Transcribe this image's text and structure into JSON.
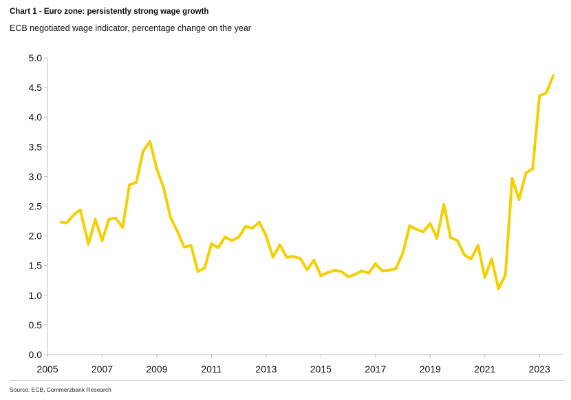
{
  "title": "Chart 1 - Euro zone: persistently strong wage growth",
  "subtitle": "ECB negotiated wage indicator, percentage change on the year",
  "source": "Source: ECB, Commerzbank Research",
  "chart_data": {
    "type": "line",
    "title": "Chart 1 - Euro zone: persistently strong wage growth",
    "subtitle": "ECB negotiated wage indicator, percentage change on the year",
    "xlabel": "",
    "ylabel": "",
    "xlim": [
      2005,
      2023.85
    ],
    "ylim": [
      0,
      5
    ],
    "y_ticks": [
      "0.0",
      "0.5",
      "1.0",
      "1.5",
      "2.0",
      "2.5",
      "3.0",
      "3.5",
      "4.0",
      "4.5",
      "5.0"
    ],
    "x_ticks": [
      "2005",
      "2007",
      "2009",
      "2011",
      "2013",
      "2015",
      "2017",
      "2019",
      "2021",
      "2023"
    ],
    "grid": false,
    "legend": "none",
    "line_color": "#f5d000",
    "series": [
      {
        "name": "",
        "x": [
          2005.5,
          2005.7,
          2006.0,
          2006.2,
          2006.5,
          2006.75,
          2007.0,
          2007.25,
          2007.5,
          2007.75,
          2008.0,
          2008.25,
          2008.5,
          2008.75,
          2009.0,
          2009.25,
          2009.5,
          2009.75,
          2010.0,
          2010.25,
          2010.5,
          2010.75,
          2011.0,
          2011.25,
          2011.5,
          2011.75,
          2012.0,
          2012.25,
          2012.5,
          2012.75,
          2013.0,
          2013.25,
          2013.5,
          2013.75,
          2014.0,
          2014.25,
          2014.5,
          2014.75,
          2015.0,
          2015.25,
          2015.5,
          2015.75,
          2016.0,
          2016.25,
          2016.5,
          2016.75,
          2017.0,
          2017.25,
          2017.5,
          2017.75,
          2018.0,
          2018.25,
          2018.5,
          2018.75,
          2019.0,
          2019.25,
          2019.5,
          2019.75,
          2020.0,
          2020.25,
          2020.5,
          2020.75,
          2021.0,
          2021.25,
          2021.5,
          2021.75,
          2022.0,
          2022.25,
          2022.5,
          2022.75,
          2023.0,
          2023.25,
          2023.5
        ],
        "values": [
          2.23,
          2.22,
          2.37,
          2.44,
          1.86,
          2.28,
          1.92,
          2.28,
          2.3,
          2.14,
          2.86,
          2.9,
          3.43,
          3.59,
          3.13,
          2.81,
          2.31,
          2.08,
          1.81,
          1.84,
          1.4,
          1.46,
          1.87,
          1.8,
          1.98,
          1.92,
          1.98,
          2.16,
          2.13,
          2.23,
          2.0,
          1.64,
          1.85,
          1.64,
          1.65,
          1.62,
          1.43,
          1.59,
          1.33,
          1.38,
          1.42,
          1.4,
          1.31,
          1.35,
          1.41,
          1.37,
          1.53,
          1.41,
          1.42,
          1.45,
          1.71,
          2.17,
          2.11,
          2.07,
          2.21,
          1.96,
          2.53,
          1.97,
          1.92,
          1.68,
          1.61,
          1.84,
          1.3,
          1.61,
          1.11,
          1.34,
          2.97,
          2.61,
          3.06,
          3.13,
          4.36,
          4.41,
          4.7
        ]
      }
    ]
  }
}
